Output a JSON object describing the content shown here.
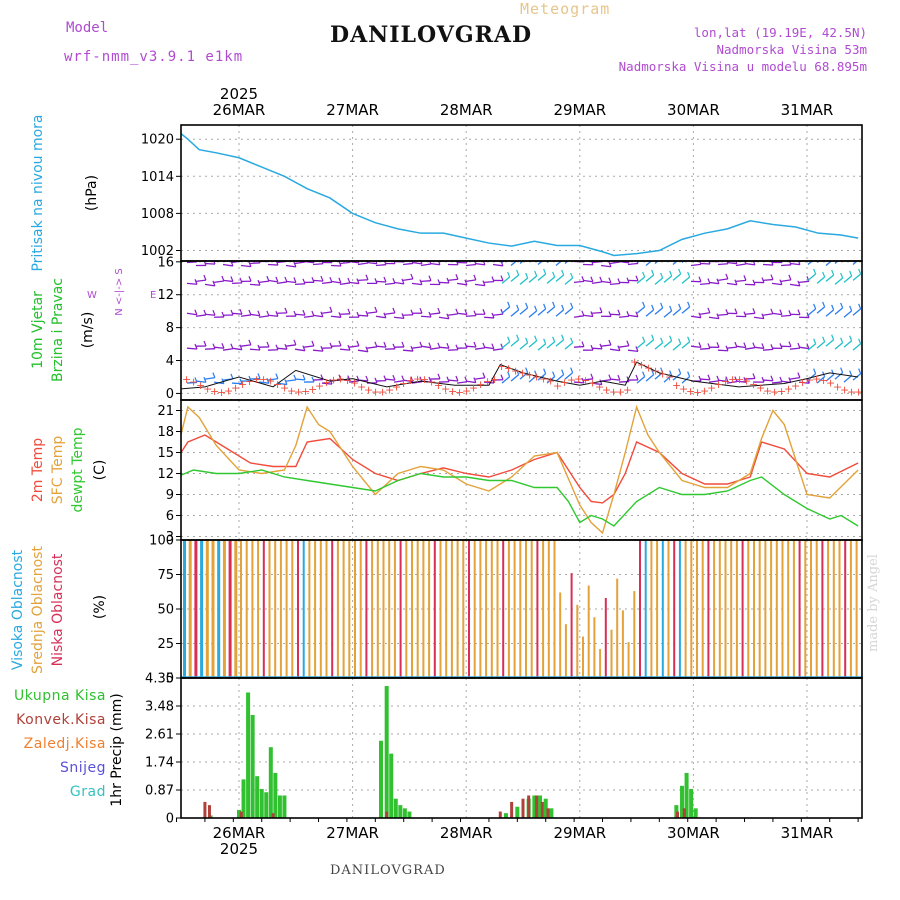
{
  "header": {
    "model_label": "Model",
    "model_name": "wrf-nmm_v3.9.1 e1km",
    "title": "DANILOVGRAD",
    "meteogram": "Meteogram",
    "lonlat": "lon,lat (19.19E, 42.5N)",
    "altitude": "Nadmorska Visina 53m",
    "altitude_model": "Nadmorska Visina u modelu 68.895m"
  },
  "footer": {
    "station": "DANILOVGRAD"
  },
  "credit": "made by Angel",
  "colors": {
    "pressure": "#29a9e0",
    "wind_label": "#22c02a",
    "wind_barb": "#8a1bc8",
    "gust_barb": "#2a7df0",
    "temp2m": "#f04b3c",
    "sfc": "#e3a23a",
    "dewpt": "#30c830",
    "high_cloud": "#29a9e0",
    "mid_cloud": "#e3a23a",
    "low_cloud": "#d72f56",
    "total_precip": "#30c030",
    "conv_precip": "#b0403a",
    "frz_precip": "#f08030",
    "snow": "#5a50d8",
    "hail": "#38c0c0"
  },
  "chart_data": {
    "type": "meteogram",
    "time_axis": {
      "year": "2025",
      "days": [
        "26MAR",
        "27MAR",
        "28MAR",
        "29MAR",
        "30MAR",
        "31MAR"
      ],
      "start_day_offset": -0.55,
      "end_day_offset": 5.45
    },
    "panels": [
      {
        "id": "pressure",
        "type": "line",
        "labels": [
          "Pritisak na nivou mora"
        ],
        "unit": "(hPa)",
        "ylim": [
          1000.3,
          1022.3
        ],
        "yticks": [
          1002,
          1008,
          1014,
          1020
        ],
        "series": [
          {
            "name": "Pritisak na nivou mora",
            "color": "#29a9e0",
            "x": [
              -0.55,
              -0.45,
              -0.35,
              -0.2,
              0.0,
              0.2,
              0.4,
              0.6,
              0.8,
              1.0,
              1.2,
              1.4,
              1.6,
              1.8,
              2.0,
              2.2,
              2.4,
              2.6,
              2.8,
              3.0,
              3.2,
              3.3,
              3.5,
              3.7,
              3.9,
              4.1,
              4.3,
              4.5,
              4.7,
              4.9,
              5.1,
              5.3,
              5.45
            ],
            "y": [
              1021.5,
              1020,
              1018.3,
              1017.8,
              1017,
              1015.5,
              1014,
              1012,
              1010.5,
              1008,
              1006.5,
              1005.5,
              1004.8,
              1004.8,
              1004,
              1003.2,
              1002.7,
              1003.5,
              1002.8,
              1002.8,
              1001.8,
              1001.2,
              1001.5,
              1002,
              1003.8,
              1004.8,
              1005.5,
              1006.8,
              1006.2,
              1005.8,
              1004.8,
              1004.5,
              1004
            ]
          }
        ]
      },
      {
        "id": "wind",
        "type": "barbs",
        "labels": [
          "10m Vjetar",
          "Brzina i Pravac"
        ],
        "unit": "(m/s)",
        "compass": {
          "n": "N",
          "w": "W",
          "e": "E",
          "s": "S"
        },
        "ylim": [
          -0.8,
          16.1
        ],
        "yticks": [
          0,
          4,
          8,
          12,
          16
        ],
        "barb_rows": [
          1.5,
          5.5,
          9.5,
          13.5,
          15.8
        ],
        "speed_series": {
          "x": [
            -0.55,
            -0.3,
            0.0,
            0.3,
            0.5,
            0.8,
            1.0,
            1.3,
            1.6,
            1.9,
            2.2,
            2.3,
            2.5,
            2.8,
            3.0,
            3.2,
            3.4,
            3.5,
            3.7,
            4.0,
            4.4,
            4.8,
            5.0,
            5.2,
            5.45
          ],
          "y": [
            0.5,
            0.8,
            2.0,
            0.8,
            2.8,
            1.5,
            1.8,
            0.8,
            1.5,
            1.0,
            1.0,
            3.5,
            2.5,
            1.5,
            1.0,
            1.5,
            1.0,
            3.8,
            2.5,
            1.5,
            0.8,
            1.2,
            1.8,
            2.5,
            2.0
          ]
        }
      },
      {
        "id": "temperature",
        "type": "line",
        "labels": [
          "2m Temp",
          "SFC Temp",
          "dewpt Temp"
        ],
        "unit": "(C)",
        "ylim": [
          2.5,
          22.5
        ],
        "yticks": [
          3,
          6,
          9,
          12,
          15,
          18,
          21
        ],
        "series": [
          {
            "name": "2m Temp",
            "color": "#f04b3c",
            "x": [
              -0.55,
              -0.45,
              -0.3,
              -0.1,
              0.1,
              0.3,
              0.5,
              0.6,
              0.8,
              1.0,
              1.2,
              1.4,
              1.6,
              1.8,
              2.0,
              2.2,
              2.4,
              2.6,
              2.8,
              3.0,
              3.1,
              3.2,
              3.3,
              3.4,
              3.5,
              3.7,
              3.9,
              4.1,
              4.3,
              4.5,
              4.6,
              4.8,
              5.0,
              5.2,
              5.45
            ],
            "y": [
              14,
              16.5,
              17.5,
              15.5,
              13.5,
              13,
              13,
              16.5,
              17,
              14,
              12,
              11,
              12,
              12.8,
              12,
              11.5,
              12.5,
              14,
              15,
              10,
              8,
              7.8,
              9,
              12,
              16.5,
              15,
              12,
              10.5,
              10.5,
              11.5,
              16.5,
              15.5,
              12,
              11.5,
              13.5
            ]
          },
          {
            "name": "SFC Temp",
            "color": "#e3a23a",
            "x": [
              -0.55,
              -0.45,
              -0.35,
              -0.2,
              0.0,
              0.2,
              0.4,
              0.5,
              0.6,
              0.7,
              0.8,
              1.0,
              1.2,
              1.4,
              1.6,
              1.8,
              2.0,
              2.2,
              2.4,
              2.6,
              2.8,
              3.0,
              3.1,
              3.2,
              3.3,
              3.4,
              3.5,
              3.6,
              3.7,
              3.9,
              4.1,
              4.3,
              4.5,
              4.6,
              4.7,
              4.8,
              5.0,
              5.2,
              5.45
            ],
            "y": [
              15,
              21.5,
              20,
              16,
              12.5,
              12,
              12.5,
              16,
              21.5,
              19,
              18,
              13,
              9,
              12,
              13,
              12.5,
              10.5,
              9.5,
              11.5,
              14.5,
              15,
              7.5,
              5,
              3.5,
              9,
              15,
              21.5,
              17.5,
              15,
              11,
              10,
              10,
              12,
              17,
              21,
              19,
              9,
              8.5,
              12.5
            ]
          },
          {
            "name": "dewpt Temp",
            "color": "#30c830",
            "x": [
              -0.55,
              -0.4,
              -0.2,
              0.0,
              0.2,
              0.4,
              0.6,
              0.8,
              1.0,
              1.2,
              1.4,
              1.6,
              1.8,
              2.0,
              2.2,
              2.4,
              2.6,
              2.8,
              2.9,
              3.0,
              3.1,
              3.2,
              3.3,
              3.5,
              3.7,
              3.9,
              4.1,
              4.3,
              4.5,
              4.6,
              4.8,
              5.0,
              5.2,
              5.3,
              5.45
            ],
            "y": [
              11.5,
              12.5,
              12,
              12,
              12.5,
              11.5,
              11,
              10.5,
              10,
              9.5,
              11,
              12,
              11.5,
              11.5,
              11,
              11,
              10,
              10,
              8,
              5,
              6,
              5.5,
              4.5,
              8,
              10,
              9,
              9,
              9.5,
              11,
              11.5,
              9,
              7,
              5.5,
              6,
              4.5
            ]
          }
        ]
      },
      {
        "id": "cloud",
        "type": "bar",
        "labels": [
          "Visoka Oblacnost",
          "Srednja Oblacnost",
          "Niska Oblacnost"
        ],
        "unit": "(%)",
        "ylim": [
          0,
          100
        ],
        "yticks": [
          0,
          25,
          50,
          75,
          100
        ]
      },
      {
        "id": "precip",
        "type": "bar",
        "labels": [
          "Ukupna Kisa",
          "Konvek.Kisa",
          "Zaledj.Kisa",
          "Snijeg",
          "Grad"
        ],
        "unit": "1hr Precip (mm)",
        "ylim": [
          0,
          4.35
        ],
        "yticks": [
          0,
          0.87,
          1.74,
          2.61,
          3.48,
          4.35
        ],
        "total": [
          [
            -0.25,
            0.08
          ],
          [
            0.0,
            0.25
          ],
          [
            0.04,
            1.2
          ],
          [
            0.08,
            3.9
          ],
          [
            0.12,
            3.2
          ],
          [
            0.16,
            1.3
          ],
          [
            0.2,
            0.9
          ],
          [
            0.24,
            0.8
          ],
          [
            0.28,
            2.2
          ],
          [
            0.32,
            1.4
          ],
          [
            0.36,
            0.7
          ],
          [
            0.4,
            0.7
          ],
          [
            1.25,
            2.4
          ],
          [
            1.3,
            4.1
          ],
          [
            1.34,
            2.0
          ],
          [
            1.38,
            0.6
          ],
          [
            1.42,
            0.4
          ],
          [
            1.46,
            0.3
          ],
          [
            1.5,
            0.2
          ],
          [
            2.35,
            0.15
          ],
          [
            2.45,
            0.35
          ],
          [
            2.55,
            0.6
          ],
          [
            2.6,
            0.7
          ],
          [
            2.65,
            0.7
          ],
          [
            2.7,
            0.6
          ],
          [
            2.75,
            0.3
          ],
          [
            3.85,
            0.4
          ],
          [
            3.9,
            1.0
          ],
          [
            3.94,
            1.4
          ],
          [
            3.98,
            0.9
          ],
          [
            4.02,
            0.3
          ]
        ],
        "convective": [
          [
            -0.3,
            0.5
          ],
          [
            -0.26,
            0.4
          ],
          [
            0.02,
            0.2
          ],
          [
            0.3,
            0.15
          ],
          [
            1.3,
            0.2
          ],
          [
            2.3,
            0.2
          ],
          [
            2.4,
            0.5
          ],
          [
            2.5,
            0.6
          ],
          [
            2.55,
            0.7
          ],
          [
            2.62,
            0.7
          ],
          [
            2.67,
            0.5
          ],
          [
            2.72,
            0.3
          ],
          [
            3.86,
            0.2
          ],
          [
            3.92,
            0.3
          ]
        ]
      }
    ]
  }
}
